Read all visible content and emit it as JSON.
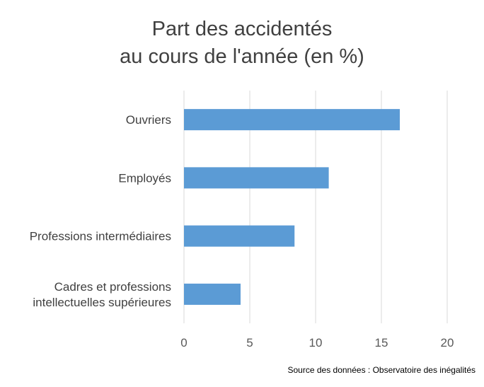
{
  "chart_data": {
    "type": "bar",
    "orientation": "horizontal",
    "title": [
      "Part des accidentés",
      "au cours de l'année (en %)"
    ],
    "categories": [
      "Ouvriers",
      "Employés",
      "Professions intermédiaires",
      "Cadres et professions intellectuelles supérieures"
    ],
    "category_lines": [
      [
        "Ouvriers"
      ],
      [
        "Employés"
      ],
      [
        "Professions intermédiaires"
      ],
      [
        "Cadres et professions",
        "intellectuelles supérieures"
      ]
    ],
    "values": [
      16.4,
      11.0,
      8.4,
      4.3
    ],
    "xlim": [
      0,
      20
    ],
    "xticks": [
      0,
      5,
      10,
      15,
      20
    ],
    "grid": "vertical",
    "legend": "none",
    "bar_color": "#5B9BD5",
    "grid_color": "#D9D9D9"
  },
  "source": "Source des données : Observatoire des inégalités"
}
